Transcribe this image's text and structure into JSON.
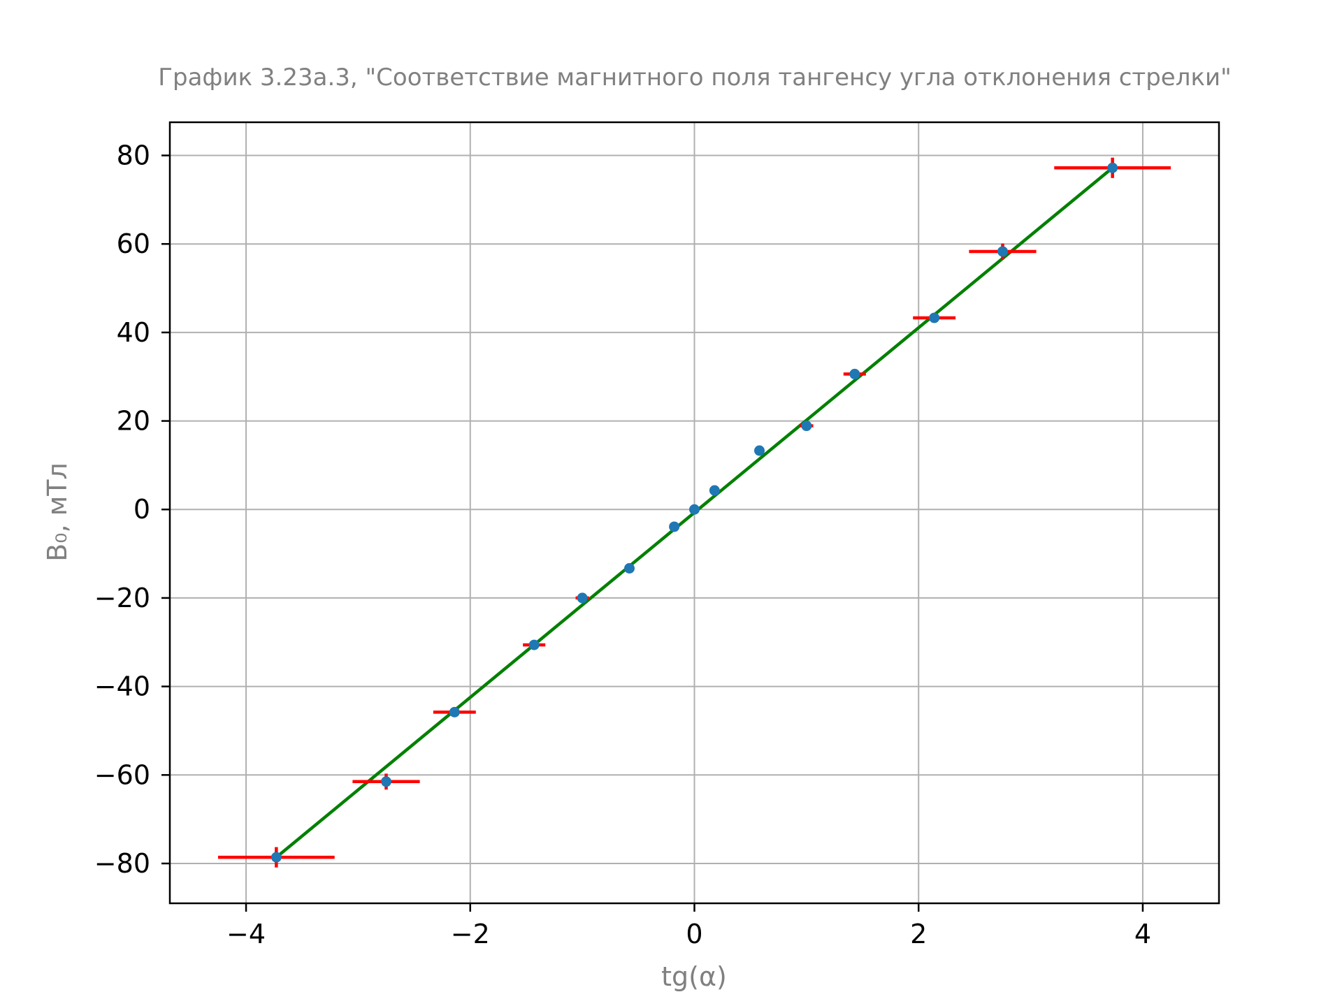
{
  "chart_data": {
    "type": "scatter",
    "title": "График 3.23а.3, \"Соответствие магнитного поля тангенсу угла отклонения стрелки\"",
    "xlabel": "tg(α)",
    "ylabel": "B₀, мТл",
    "xlim": [
      -4.68,
      4.68
    ],
    "ylim": [
      -89,
      87.5
    ],
    "xticks": [
      -4,
      -2,
      0,
      2,
      4
    ],
    "xtick_labels": [
      "−4",
      "−2",
      "0",
      "2",
      "4"
    ],
    "yticks": [
      -80,
      -60,
      -40,
      -20,
      0,
      20,
      40,
      60,
      80
    ],
    "ytick_labels": [
      "−80",
      "−60",
      "−40",
      "−20",
      "0",
      "20",
      "40",
      "60",
      "80"
    ],
    "grid": true,
    "fit_line": {
      "x": [
        -3.73,
        3.73
      ],
      "y": [
        -78.6,
        77.2
      ],
      "color": "#008000"
    },
    "points": [
      {
        "x": -3.73,
        "y": -78.6,
        "xerr": 0.52,
        "yerr": 2.3
      },
      {
        "x": -2.75,
        "y": -61.5,
        "xerr": 0.3,
        "yerr": 1.8
      },
      {
        "x": -2.14,
        "y": -45.8,
        "xerr": 0.19,
        "yerr": 0.6
      },
      {
        "x": -1.43,
        "y": -30.6,
        "xerr": 0.1,
        "yerr": 0.5
      },
      {
        "x": -1.0,
        "y": -20.0,
        "xerr": 0.06,
        "yerr": 0.3
      },
      {
        "x": -0.58,
        "y": -13.3,
        "xerr": 0.02,
        "yerr": 0.2
      },
      {
        "x": -0.18,
        "y": -3.9,
        "xerr": 0.01,
        "yerr": 0.1
      },
      {
        "x": 0.0,
        "y": 0.0,
        "xerr": 0.0,
        "yerr": 0.0
      },
      {
        "x": 0.18,
        "y": 4.3,
        "xerr": 0.01,
        "yerr": 0.1
      },
      {
        "x": 0.58,
        "y": 13.3,
        "xerr": 0.02,
        "yerr": 0.2
      },
      {
        "x": 1.0,
        "y": 18.9,
        "xerr": 0.06,
        "yerr": 0.3
      },
      {
        "x": 1.43,
        "y": 30.6,
        "xerr": 0.1,
        "yerr": 0.5
      },
      {
        "x": 2.14,
        "y": 43.3,
        "xerr": 0.19,
        "yerr": 0.6
      },
      {
        "x": 2.75,
        "y": 58.3,
        "xerr": 0.3,
        "yerr": 1.8
      },
      {
        "x": 3.73,
        "y": 77.2,
        "xerr": 0.52,
        "yerr": 2.3
      }
    ],
    "colors": {
      "points": "#1f77b4",
      "errorbars": "#ff0000",
      "fit": "#008000",
      "grid": "#b0b0b0"
    }
  }
}
